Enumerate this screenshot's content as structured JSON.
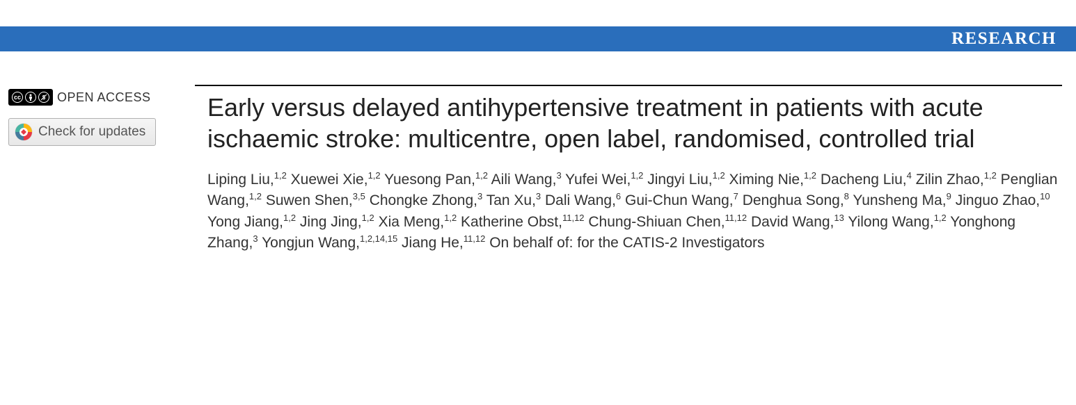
{
  "header": {
    "label": "RESEARCH",
    "band_color": "#2a6ebb",
    "text_color": "#ffffff"
  },
  "sidebar": {
    "open_access_label": "OPEN ACCESS",
    "check_updates_label": "Check for updates"
  },
  "article": {
    "title": "Early versus delayed antihypertensive treatment in patients with acute ischaemic stroke: multicentre, open label, randomised, controlled trial",
    "authors": [
      {
        "name": "Liping Liu",
        "affil": "1,2"
      },
      {
        "name": "Xuewei Xie",
        "affil": "1,2"
      },
      {
        "name": "Yuesong Pan",
        "affil": "1,2"
      },
      {
        "name": "Aili Wang",
        "affil": "3"
      },
      {
        "name": "Yufei Wei",
        "affil": "1,2"
      },
      {
        "name": "Jingyi Liu",
        "affil": "1,2"
      },
      {
        "name": "Ximing Nie",
        "affil": "1,2"
      },
      {
        "name": "Dacheng Liu",
        "affil": "4"
      },
      {
        "name": "Zilin Zhao",
        "affil": "1,2"
      },
      {
        "name": "Penglian Wang",
        "affil": "1,2"
      },
      {
        "name": "Suwen Shen",
        "affil": "3,5"
      },
      {
        "name": "Chongke Zhong",
        "affil": "3"
      },
      {
        "name": "Tan Xu",
        "affil": "3"
      },
      {
        "name": "Dali Wang",
        "affil": "6"
      },
      {
        "name": "Gui-Chun Wang",
        "affil": "7"
      },
      {
        "name": "Denghua Song",
        "affil": "8"
      },
      {
        "name": "Yunsheng Ma",
        "affil": "9"
      },
      {
        "name": "Jinguo Zhao",
        "affil": "10"
      },
      {
        "name": "Yong Jiang",
        "affil": "1,2"
      },
      {
        "name": "Jing Jing",
        "affil": "1,2"
      },
      {
        "name": "Xia Meng",
        "affil": "1,2"
      },
      {
        "name": "Katherine Obst",
        "affil": "11,12"
      },
      {
        "name": "Chung-Shiuan Chen",
        "affil": "11,12"
      },
      {
        "name": "David Wang",
        "affil": "13"
      },
      {
        "name": "Yilong Wang",
        "affil": "1,2"
      },
      {
        "name": "Yonghong Zhang",
        "affil": "3"
      },
      {
        "name": "Yongjun Wang",
        "affil": "1,2,14,15"
      },
      {
        "name": "Jiang He",
        "affil": "11,12"
      }
    ],
    "behalf_text": "On behalf of: for the CATIS-2 Investigators"
  },
  "styling": {
    "title_fontsize": 36,
    "title_color": "#222222",
    "author_fontsize": 21,
    "author_color": "#333333",
    "background_color": "#ffffff",
    "rule_color": "#000000"
  }
}
